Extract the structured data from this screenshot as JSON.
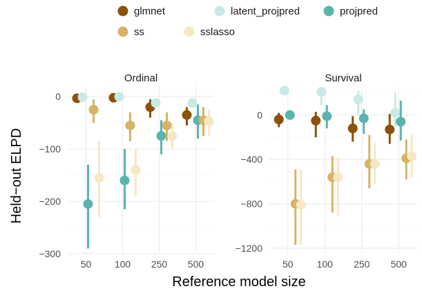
{
  "chart_data": {
    "type": "scatter",
    "x_axis_title": "Reference model size",
    "y_axis_title": "Held−out ELPD",
    "categories": [
      "50",
      "100",
      "250",
      "500"
    ],
    "legend": {
      "placement": "top",
      "entries": [
        {
          "name": "glmnet",
          "color": "#8c510a"
        },
        {
          "name": "latent_projpred",
          "color": "#c7eae5"
        },
        {
          "name": "projpred",
          "color": "#5ab4ac"
        },
        {
          "name": "ss",
          "color": "#d8b365"
        },
        {
          "name": "sslasso",
          "color": "#f6e8c3"
        }
      ]
    },
    "grid": true,
    "facets": [
      {
        "title": "Ordinal",
        "ylim": [
          -300,
          20
        ],
        "y_ticks": [
          0,
          -100,
          -200,
          -300
        ],
        "y_tick_labels": [
          "0",
          "−100",
          "−200",
          "−300"
        ],
        "series": [
          {
            "name": "glmnet",
            "points": [
              {
                "x": "50",
                "y": -3,
                "lo": -3,
                "hi": -3
              },
              {
                "x": "100",
                "y": -2,
                "lo": -2,
                "hi": -2
              },
              {
                "x": "250",
                "y": -20,
                "lo": -40,
                "hi": -5
              },
              {
                "x": "500",
                "y": -35,
                "lo": -55,
                "hi": -20
              }
            ]
          },
          {
            "name": "latent_projpred",
            "points": [
              {
                "x": "50",
                "y": -1,
                "lo": -1,
                "hi": -1
              },
              {
                "x": "100",
                "y": 0,
                "lo": 0,
                "hi": 0
              },
              {
                "x": "250",
                "y": -12,
                "lo": -20,
                "hi": -5
              },
              {
                "x": "500",
                "y": -12,
                "lo": -20,
                "hi": -5
              }
            ]
          },
          {
            "name": "projpred",
            "points": [
              {
                "x": "50",
                "y": -205,
                "lo": -290,
                "hi": -130
              },
              {
                "x": "100",
                "y": -160,
                "lo": -215,
                "hi": -100
              },
              {
                "x": "250",
                "y": -75,
                "lo": -110,
                "hi": -45
              },
              {
                "x": "500",
                "y": -45,
                "lo": -80,
                "hi": -15
              }
            ]
          },
          {
            "name": "ss",
            "points": [
              {
                "x": "50",
                "y": -25,
                "lo": -50,
                "hi": -5
              },
              {
                "x": "100",
                "y": -55,
                "lo": -85,
                "hi": -30
              },
              {
                "x": "250",
                "y": -55,
                "lo": -85,
                "hi": -30
              },
              {
                "x": "500",
                "y": -45,
                "lo": -75,
                "hi": -20
              }
            ]
          },
          {
            "name": "sslasso",
            "points": [
              {
                "x": "50",
                "y": -155,
                "lo": -230,
                "hi": -85
              },
              {
                "x": "100",
                "y": -140,
                "lo": -190,
                "hi": -100
              },
              {
                "x": "250",
                "y": -75,
                "lo": -100,
                "hi": -50
              },
              {
                "x": "500",
                "y": -47,
                "lo": -75,
                "hi": -25
              }
            ]
          }
        ]
      },
      {
        "title": "Survival",
        "ylim": [
          -1250,
          260
        ],
        "y_ticks": [
          0,
          -400,
          -800,
          -1200
        ],
        "y_tick_labels": [
          "0",
          "−400",
          "−800",
          "−1200"
        ],
        "series": [
          {
            "name": "glmnet",
            "points": [
              {
                "x": "50",
                "y": -40,
                "lo": -110,
                "hi": 20
              },
              {
                "x": "100",
                "y": -50,
                "lo": -200,
                "hi": 30
              },
              {
                "x": "250",
                "y": -120,
                "lo": -240,
                "hi": -10
              },
              {
                "x": "500",
                "y": -130,
                "lo": -260,
                "hi": 10
              }
            ]
          },
          {
            "name": "latent_projpred",
            "points": [
              {
                "x": "50",
                "y": 220,
                "lo": 220,
                "hi": 220
              },
              {
                "x": "100",
                "y": 210,
                "lo": 90,
                "hi": 230
              },
              {
                "x": "250",
                "y": 140,
                "lo": 0,
                "hi": 220
              },
              {
                "x": "500",
                "y": 20,
                "lo": -100,
                "hi": 200
              }
            ]
          },
          {
            "name": "projpred",
            "points": [
              {
                "x": "50",
                "y": 0,
                "lo": 0,
                "hi": 0
              },
              {
                "x": "100",
                "y": -10,
                "lo": -120,
                "hi": 90
              },
              {
                "x": "250",
                "y": -30,
                "lo": -170,
                "hi": 50
              },
              {
                "x": "500",
                "y": -60,
                "lo": -230,
                "hi": 130
              }
            ]
          },
          {
            "name": "ss",
            "points": [
              {
                "x": "50",
                "y": -800,
                "lo": -1170,
                "hi": -490
              },
              {
                "x": "100",
                "y": -560,
                "lo": -880,
                "hi": -370
              },
              {
                "x": "250",
                "y": -440,
                "lo": -660,
                "hi": -180
              },
              {
                "x": "500",
                "y": -390,
                "lo": -580,
                "hi": -220
              }
            ]
          },
          {
            "name": "sslasso",
            "points": [
              {
                "x": "50",
                "y": -810,
                "lo": -1170,
                "hi": -490
              },
              {
                "x": "100",
                "y": -560,
                "lo": -910,
                "hi": -380
              },
              {
                "x": "250",
                "y": -440,
                "lo": -620,
                "hi": -250
              },
              {
                "x": "500",
                "y": -370,
                "lo": -560,
                "hi": -170
              }
            ]
          }
        ]
      }
    ]
  }
}
